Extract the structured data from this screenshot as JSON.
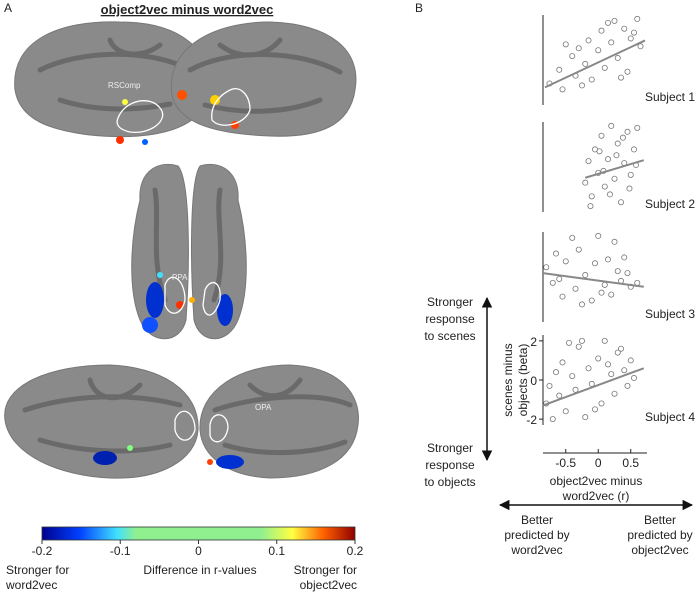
{
  "panel_a": {
    "label": "A",
    "title": "object2vec minus word2vec",
    "roi_labels": [
      "RSComp",
      "PPA",
      "OPA"
    ],
    "colorbar": {
      "xlim": [
        -0.2,
        0.2
      ],
      "ticks": [
        -0.2,
        -0.1,
        0,
        0.1,
        0.2
      ],
      "label": "Difference in r-values",
      "left_label": [
        "Stronger for",
        "word2vec"
      ],
      "right_label": [
        "Stronger for",
        "object2vec"
      ]
    }
  },
  "panel_b": {
    "label": "B",
    "top_label": [
      "Stronger",
      "response",
      "to scenes"
    ],
    "bottom_label": [
      "Stronger",
      "response",
      "to objects"
    ],
    "left_label": [
      "Better",
      "predicted by",
      "word2vec"
    ],
    "right_label": [
      "Better",
      "predicted by",
      "object2vec"
    ]
  },
  "chart_data": [
    {
      "type": "scatter",
      "title": "Subject 1",
      "xlim": [
        -0.85,
        0.75
      ],
      "ylim": [
        -2.3,
        2.3
      ],
      "x": [
        -0.75,
        -0.6,
        -0.55,
        -0.4,
        -0.35,
        -0.3,
        -0.2,
        -0.15,
        -0.1,
        0,
        0.05,
        0.1,
        0.2,
        0.25,
        0.3,
        0.4,
        0.45,
        0.5,
        0.6,
        0.65,
        -0.5,
        -0.25,
        0.15,
        0.35,
        0.55
      ],
      "y": [
        -1.2,
        -0.5,
        -1.5,
        0.2,
        -0.8,
        0.6,
        -0.2,
        1.0,
        -1.0,
        0.5,
        1.5,
        -0.4,
        0.9,
        2.0,
        0.1,
        1.6,
        -0.6,
        1.1,
        2.1,
        0.7,
        0.8,
        -1.3,
        1.9,
        -0.9,
        1.4
      ],
      "trend_line": {
        "x": [
          -0.82,
          0.72
        ],
        "y": [
          -1.4,
          1.0
        ]
      }
    },
    {
      "type": "scatter",
      "title": "Subject 2",
      "xlim": [
        -0.85,
        0.75
      ],
      "ylim": [
        -2.3,
        2.3
      ],
      "x": [
        -0.2,
        -0.15,
        -0.1,
        -0.05,
        0,
        0.05,
        0.1,
        0.15,
        0.2,
        0.25,
        0.3,
        0.35,
        0.4,
        0.45,
        0.5,
        0.55,
        0.6,
        -0.12,
        0.08,
        0.28,
        0.48,
        0.18,
        0.38,
        0.02,
        0.58
      ],
      "y": [
        -0.8,
        0.3,
        -1.5,
        0.9,
        -0.3,
        1.6,
        -1.0,
        0.4,
        2.1,
        -0.6,
        1.2,
        -1.8,
        0.2,
        1.8,
        -0.4,
        0.9,
        2.0,
        -2.0,
        -0.2,
        0.6,
        -1.1,
        -1.4,
        1.5,
        0.8,
        0.1
      ],
      "trend_line": {
        "x": [
          -0.2,
          0.7
        ],
        "y": [
          -0.55,
          0.35
        ]
      }
    },
    {
      "type": "scatter",
      "title": "Subject 3",
      "xlim": [
        -0.85,
        0.75
      ],
      "ylim": [
        -2.3,
        2.3
      ],
      "x": [
        -0.8,
        -0.7,
        -0.65,
        -0.55,
        -0.5,
        -0.4,
        -0.35,
        -0.3,
        -0.2,
        -0.1,
        -0.05,
        0,
        0.1,
        0.15,
        0.2,
        0.3,
        0.35,
        0.4,
        0.5,
        0.6,
        -0.6,
        -0.25,
        0.05,
        0.25,
        0.45
      ],
      "y": [
        0.5,
        -0.3,
        1.2,
        -1.0,
        0.8,
        2.0,
        -0.6,
        1.4,
        0.1,
        -1.2,
        0.7,
        2.1,
        -0.4,
        0.9,
        -0.9,
        0.3,
        -0.2,
        1.0,
        -0.5,
        -0.3,
        -0.1,
        -1.4,
        -0.8,
        1.8,
        0.2
      ],
      "trend_line": {
        "x": [
          -0.85,
          0.7
        ],
        "y": [
          0.2,
          -0.5
        ]
      }
    },
    {
      "type": "scatter",
      "title": "Subject 4",
      "xlim": [
        -0.85,
        0.75
      ],
      "ylim": [
        -2.3,
        2.3
      ],
      "xticks": [
        -0.5,
        0,
        0.5
      ],
      "yticks": [
        -2,
        0,
        2
      ],
      "xlabel": [
        "object2vec minus",
        "word2vec (r)"
      ],
      "ylabel": [
        "scenes minus",
        "objects (beta)"
      ],
      "x": [
        -0.8,
        -0.75,
        -0.7,
        -0.6,
        -0.55,
        -0.5,
        -0.4,
        -0.35,
        -0.3,
        -0.2,
        -0.15,
        -0.1,
        0,
        0.05,
        0.1,
        0.2,
        0.25,
        0.3,
        0.4,
        0.45,
        0.5,
        -0.45,
        -0.05,
        0.15,
        0.35,
        0.55,
        -0.65,
        -0.25
      ],
      "y": [
        -1.2,
        -0.3,
        -2.0,
        -0.8,
        0.9,
        -1.6,
        0.2,
        -0.5,
        1.7,
        -1.9,
        0.6,
        -0.2,
        1.1,
        -1.2,
        2.0,
        0.3,
        -0.7,
        1.4,
        0.5,
        -0.3,
        1.0,
        1.9,
        -1.5,
        0.8,
        1.6,
        0.1,
        0.4,
        2.0
      ],
      "trend_line": {
        "x": [
          -0.85,
          0.7
        ],
        "y": [
          -1.3,
          0.6
        ]
      }
    }
  ]
}
